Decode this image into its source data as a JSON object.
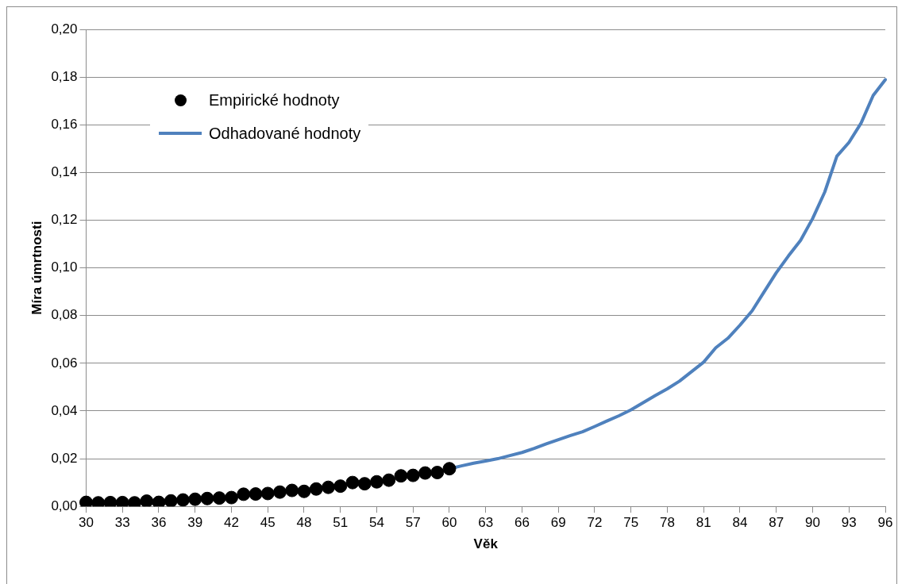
{
  "chart_data": {
    "type": "line",
    "xlabel": "Věk",
    "ylabel": "Míra úmrtnosti",
    "categories": [
      "30",
      null,
      null,
      "33",
      null,
      null,
      "36",
      null,
      null,
      "39",
      null,
      null,
      "42",
      null,
      null,
      "45",
      null,
      null,
      "48",
      null,
      null,
      "51",
      null,
      null,
      "54",
      null,
      null,
      "57",
      null,
      null,
      "60",
      null,
      null,
      "63",
      null,
      null,
      "66",
      null,
      null,
      "69",
      null,
      null,
      "72",
      null,
      null,
      "75",
      null,
      null,
      "78",
      null,
      null,
      "81",
      null,
      null,
      "84",
      null,
      null,
      "87",
      null,
      null,
      "90",
      null,
      null,
      "93",
      null,
      null,
      "96"
    ],
    "series": [
      {
        "name": "Empirické hodnoty",
        "type": "scatter",
        "marker": "circle",
        "color": "#000000",
        "values": [
          0.0017,
          0.0015,
          0.0016,
          0.0016,
          0.0015,
          0.0022,
          0.0017,
          0.0023,
          0.0027,
          0.003,
          0.0033,
          0.0035,
          0.0037,
          0.0051,
          0.0052,
          0.0054,
          0.006,
          0.0067,
          0.0063,
          0.0073,
          0.008,
          0.0085,
          0.01,
          0.0095,
          0.0103,
          0.011,
          0.0128,
          0.013,
          0.014,
          0.0142,
          0.0158,
          null,
          null,
          null,
          null,
          null,
          null,
          null,
          null,
          null,
          null,
          null,
          null,
          null,
          null,
          null,
          null,
          null,
          null,
          null,
          null,
          null,
          null,
          null,
          null,
          null,
          null,
          null,
          null,
          null,
          null,
          null,
          null,
          null,
          null,
          null,
          null
        ]
      },
      {
        "name": "Odhadované hodnoty",
        "type": "line",
        "marker": "none",
        "line_style": "solid",
        "color": "#4f81bd",
        "values": [
          null,
          null,
          null,
          null,
          null,
          null,
          null,
          null,
          null,
          null,
          null,
          null,
          null,
          null,
          null,
          null,
          null,
          null,
          null,
          null,
          null,
          null,
          null,
          null,
          null,
          null,
          null,
          null,
          null,
          null,
          0.0158,
          0.017,
          0.0181,
          0.019,
          0.02,
          0.0213,
          0.0226,
          0.0243,
          0.0262,
          0.028,
          0.0297,
          0.0313,
          0.0335,
          0.0358,
          0.038,
          0.0405,
          0.0435,
          0.0465,
          0.0493,
          0.0525,
          0.0565,
          0.0605,
          0.0665,
          0.0705,
          0.076,
          0.082,
          0.09,
          0.098,
          0.105,
          0.1115,
          0.1207,
          0.1318,
          0.1468,
          0.1526,
          0.1607,
          0.1723,
          0.1789
        ]
      }
    ],
    "ylim": [
      0,
      0.2
    ],
    "yticks": [
      {
        "value": 0,
        "label": "0,00"
      },
      {
        "value": 0.02,
        "label": "0,02"
      },
      {
        "value": 0.04,
        "label": "0,04"
      },
      {
        "value": 0.06,
        "label": "0,06"
      },
      {
        "value": 0.08,
        "label": "0,08"
      },
      {
        "value": 0.1,
        "label": "0,10"
      },
      {
        "value": 0.12,
        "label": "0,12"
      },
      {
        "value": 0.14,
        "label": "0,14"
      },
      {
        "value": 0.16,
        "label": "0,16"
      },
      {
        "value": 0.18,
        "label": "0,18"
      },
      {
        "value": 0.2,
        "label": "0,20"
      }
    ],
    "grid": "y",
    "legend": "top left"
  }
}
